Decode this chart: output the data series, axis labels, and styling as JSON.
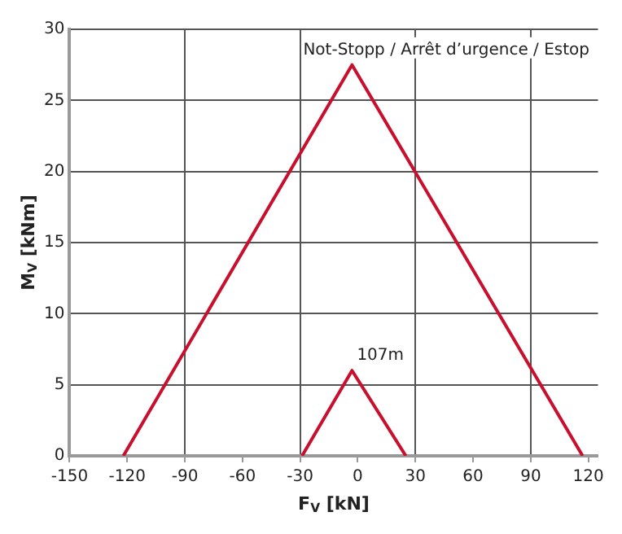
{
  "chart_data": {
    "type": "line",
    "xlabel": "F$_{V}$ [kN]",
    "ylabel": "M$_{V}$ [kNm]",
    "series": [
      {
        "color": "#c8102e",
        "x": [
          -122,
          -3,
          117
        ],
        "values": [
          0,
          27.5,
          0
        ]
      },
      {
        "color": "#c8102e",
        "x": [
          -29,
          -3,
          25
        ],
        "values": [
          0,
          6,
          0
        ]
      }
    ],
    "xlim": [
      -150,
      125
    ],
    "xticks": [
      -150,
      -120,
      -90,
      -60,
      -30,
      0,
      30,
      60,
      90,
      120
    ],
    "ylim": [
      0,
      30
    ],
    "yticks": [
      0,
      5,
      10,
      15,
      20,
      25,
      30
    ],
    "annotations": [
      {
        "text": "Not-Stopp / Arrêt d’urgence / Estop",
        "x": -3,
        "y": 27.5
      },
      {
        "text": "107m",
        "x": -3,
        "y": 6
      }
    ],
    "grid": true,
    "legend": false,
    "marker": "none",
    "line_style": "solid"
  }
}
